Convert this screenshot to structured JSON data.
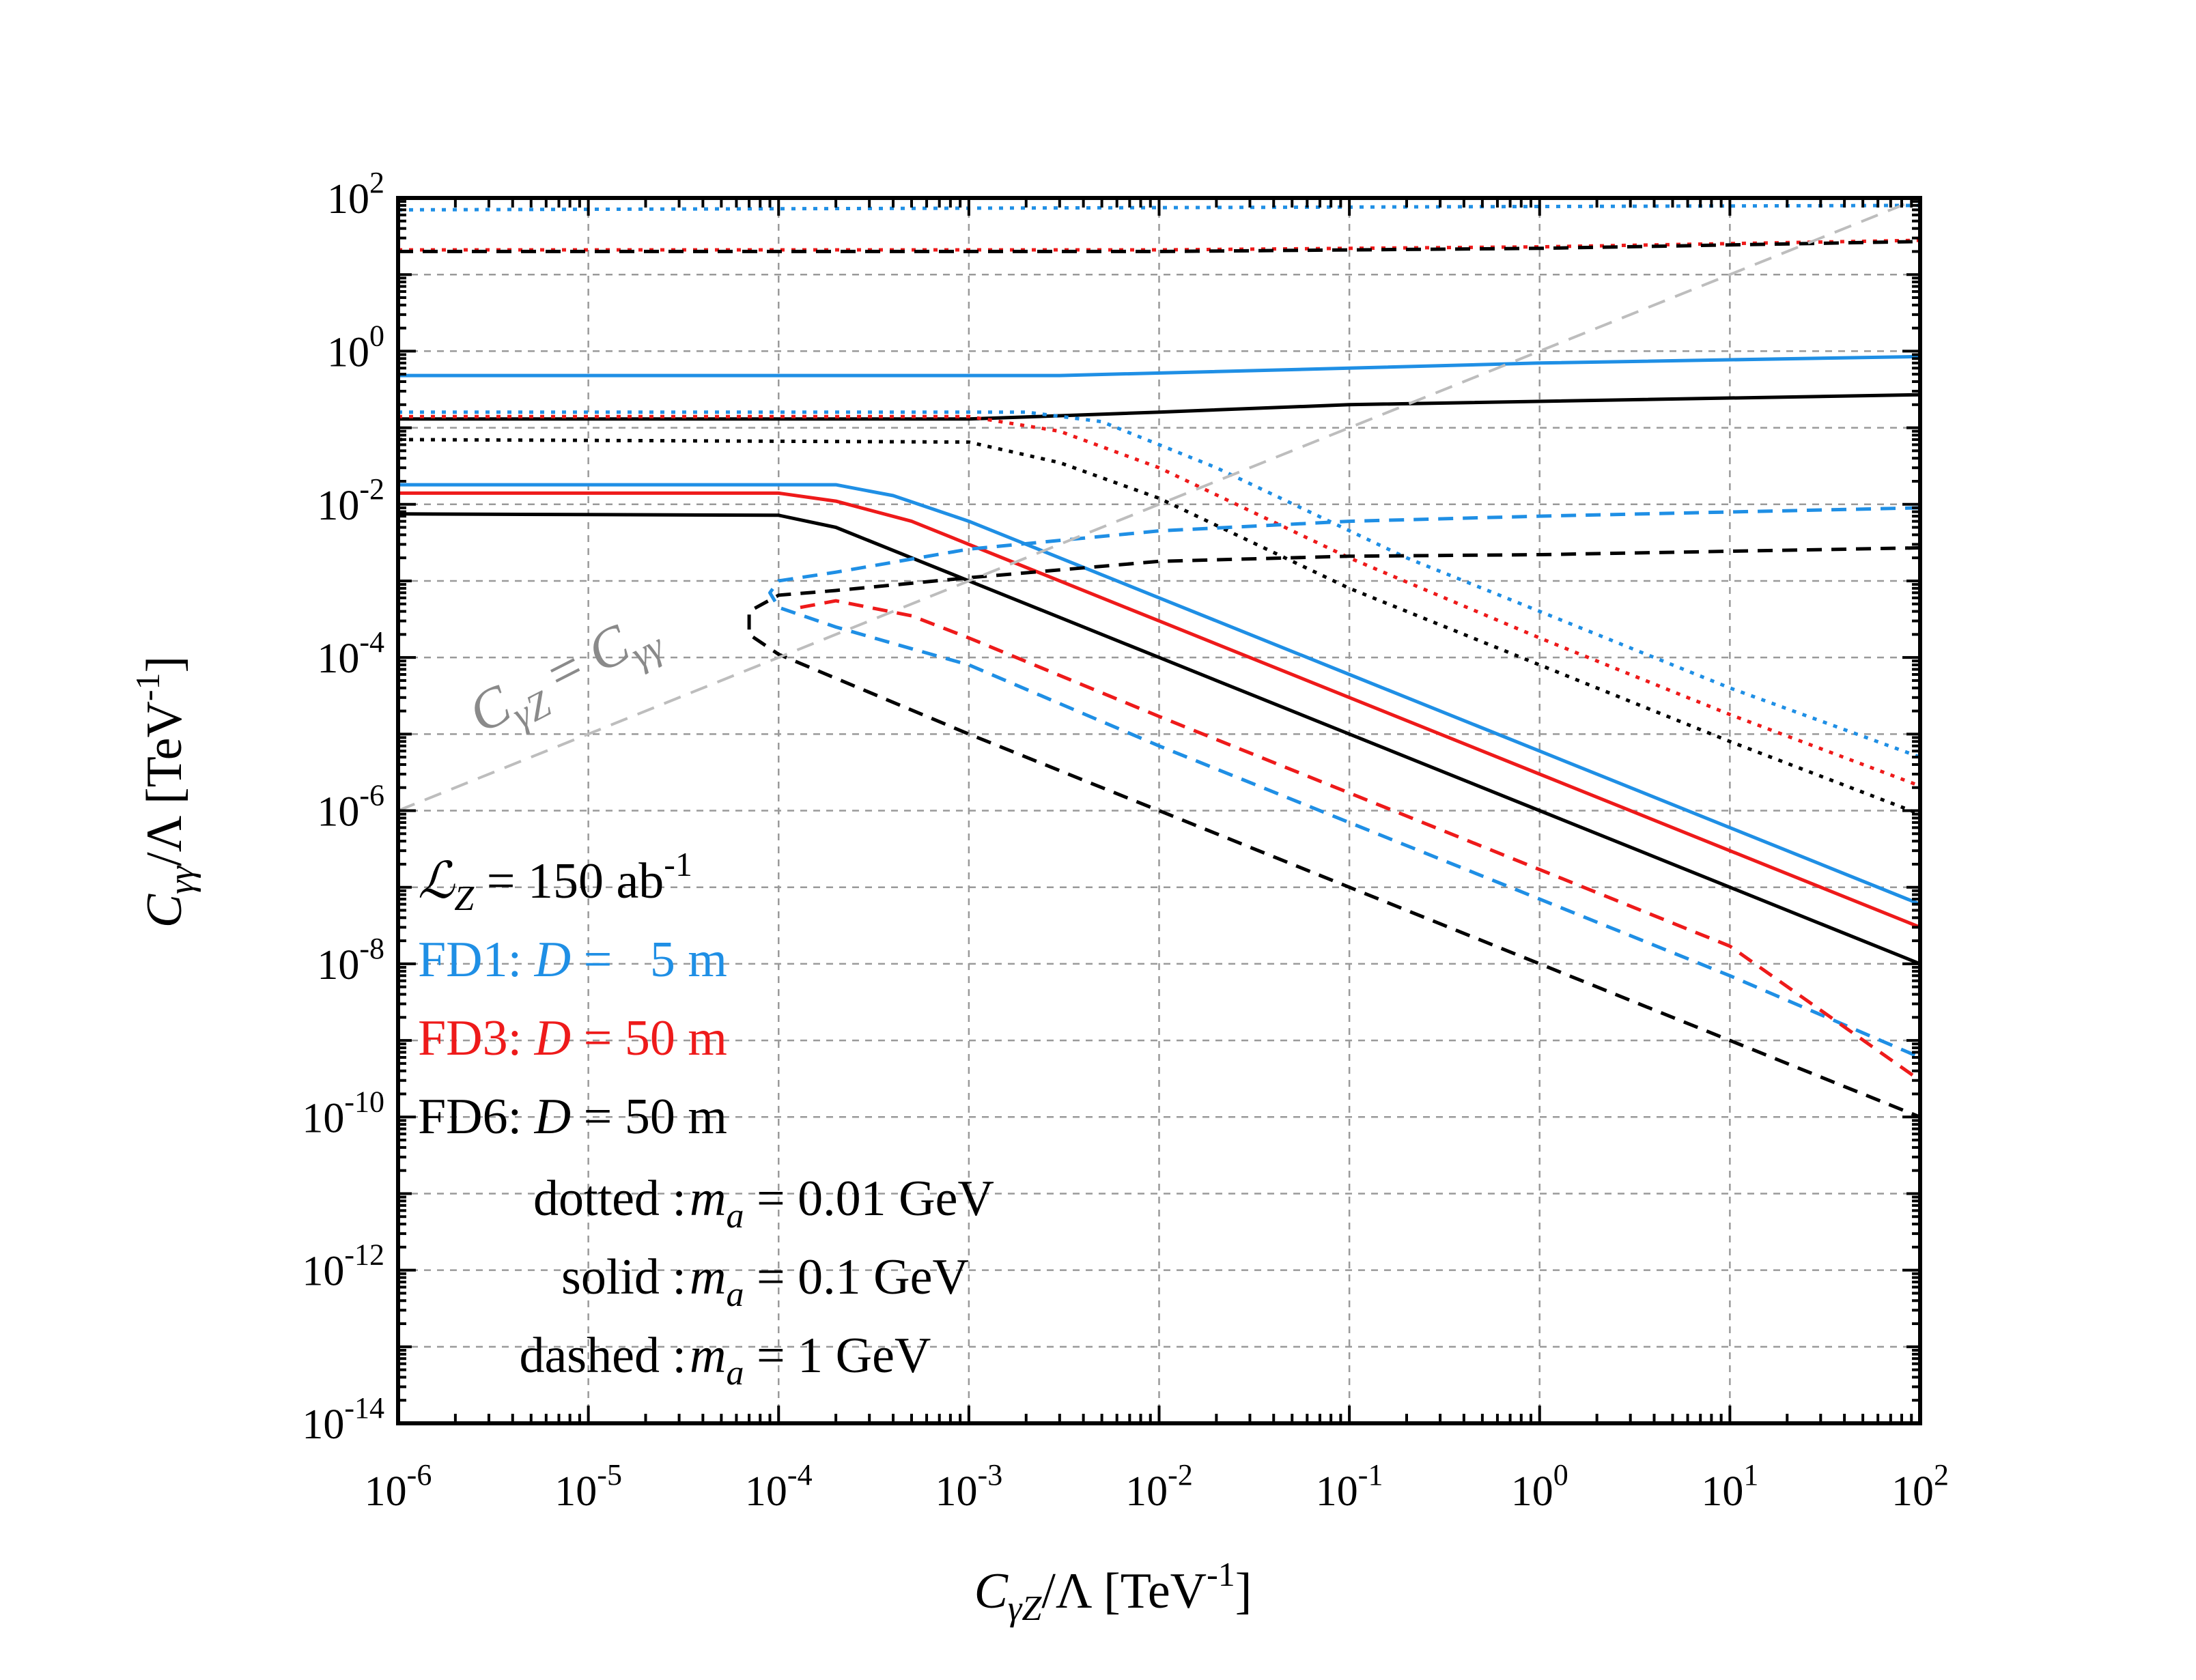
{
  "chart_data": {
    "type": "line",
    "xscale": "log",
    "yscale": "log",
    "xlim": [
      1e-06,
      100
    ],
    "ylim": [
      1e-14,
      100
    ],
    "xlabel": {
      "main": "C",
      "sub": "γZ",
      "rest": "/Λ [TeV",
      "sup": "-1",
      "end": "]"
    },
    "ylabel": {
      "main": "C",
      "sub": "γγ",
      "rest": "/Λ [TeV",
      "sup": "-1",
      "end": "]"
    },
    "grid": true,
    "x_ticks": [
      {
        "value": 1e-06,
        "base": "10",
        "exp": "-6"
      },
      {
        "value": 1e-05,
        "base": "10",
        "exp": "-5"
      },
      {
        "value": 0.0001,
        "base": "10",
        "exp": "-4"
      },
      {
        "value": 0.001,
        "base": "10",
        "exp": "-3"
      },
      {
        "value": 0.01,
        "base": "10",
        "exp": "-2"
      },
      {
        "value": 0.1,
        "base": "10",
        "exp": "-1"
      },
      {
        "value": 1,
        "base": "10",
        "exp": "0"
      },
      {
        "value": 10,
        "base": "10",
        "exp": "1"
      },
      {
        "value": 100,
        "base": "10",
        "exp": "2"
      }
    ],
    "y_ticks": [
      {
        "value": 100,
        "base": "10",
        "exp": "2"
      },
      {
        "value": 1,
        "base": "10",
        "exp": "0"
      },
      {
        "value": 0.01,
        "base": "10",
        "exp": "-2"
      },
      {
        "value": 0.0001,
        "base": "10",
        "exp": "-4"
      },
      {
        "value": 1e-06,
        "base": "10",
        "exp": "-6"
      },
      {
        "value": 1e-08,
        "base": "10",
        "exp": "-8"
      },
      {
        "value": 1e-10,
        "base": "10",
        "exp": "-10"
      },
      {
        "value": 1e-12,
        "base": "10",
        "exp": "-12"
      },
      {
        "value": 1e-14,
        "base": "10",
        "exp": "-14"
      }
    ],
    "colors": {
      "FD1": "#1f8fe5",
      "FD3": "#ee1a1a",
      "FD6": "#000000",
      "diagonal": "#bdbdbd"
    },
    "series": [
      {
        "name": "FD1 dotted",
        "detector": "FD1",
        "style": "dotted",
        "points": [
          [
            1e-06,
            70
          ],
          [
            100,
            80
          ]
        ]
      },
      {
        "name": "FD3 dotted upper",
        "detector": "FD3",
        "style": "dotted",
        "points": [
          [
            1e-06,
            21
          ],
          [
            0.01,
            21
          ],
          [
            1,
            23
          ],
          [
            100,
            28
          ]
        ]
      },
      {
        "name": "FD6 dashed upper",
        "detector": "FD6",
        "style": "dashed",
        "points": [
          [
            1e-06,
            20
          ],
          [
            0.01,
            20
          ],
          [
            1,
            22
          ],
          [
            100,
            27
          ]
        ]
      },
      {
        "name": "FD1 solid upper",
        "detector": "FD1",
        "style": "solid",
        "points": [
          [
            1e-06,
            0.48
          ],
          [
            0.003,
            0.48
          ],
          [
            0.1,
            0.6
          ],
          [
            1,
            0.7
          ],
          [
            100,
            0.85
          ]
        ]
      },
      {
        "name": "FD6 solid upper",
        "detector": "FD6",
        "style": "solid",
        "points": [
          [
            1e-06,
            0.13
          ],
          [
            0.001,
            0.13
          ],
          [
            0.01,
            0.16
          ],
          [
            0.1,
            0.2
          ],
          [
            100,
            0.27
          ]
        ]
      },
      {
        "name": "FD1 dotted lower",
        "detector": "FD1",
        "style": "dotted",
        "points": [
          [
            1e-06,
            0.16
          ],
          [
            0.002,
            0.16
          ],
          [
            0.005,
            0.12
          ],
          [
            0.02,
            0.03
          ],
          [
            0.2,
            0.002
          ],
          [
            1,
            0.0004
          ],
          [
            10,
            4e-05
          ],
          [
            100,
            5e-06
          ]
        ]
      },
      {
        "name": "FD3 dotted lower",
        "detector": "FD3",
        "style": "dotted",
        "points": [
          [
            1e-06,
            0.14
          ],
          [
            0.001,
            0.14
          ],
          [
            0.003,
            0.09
          ],
          [
            0.01,
            0.03
          ],
          [
            0.1,
            0.002
          ],
          [
            1,
            0.00018
          ],
          [
            10,
            1.8e-05
          ],
          [
            100,
            2.1e-06
          ]
        ]
      },
      {
        "name": "FD6 dotted lower",
        "detector": "FD6",
        "style": "dotted",
        "points": [
          [
            1e-06,
            0.07
          ],
          [
            0.001,
            0.065
          ],
          [
            0.003,
            0.035
          ],
          [
            0.01,
            0.012
          ],
          [
            0.1,
            0.0008
          ],
          [
            1,
            8e-05
          ],
          [
            10,
            8e-06
          ],
          [
            100,
            9e-07
          ]
        ]
      },
      {
        "name": "FD1 solid",
        "detector": "FD1",
        "style": "solid",
        "points": [
          [
            1e-06,
            0.018
          ],
          [
            0.0002,
            0.018
          ],
          [
            0.0004,
            0.013
          ],
          [
            0.001,
            0.006
          ],
          [
            0.01,
            0.0006
          ],
          [
            0.1,
            6e-05
          ],
          [
            1,
            6e-06
          ],
          [
            10,
            6e-07
          ],
          [
            100,
            6e-08
          ]
        ]
      },
      {
        "name": "FD3 solid",
        "detector": "FD3",
        "style": "solid",
        "points": [
          [
            1e-06,
            0.014
          ],
          [
            0.0001,
            0.014
          ],
          [
            0.0002,
            0.011
          ],
          [
            0.0005,
            0.006
          ],
          [
            0.001,
            0.003
          ],
          [
            0.01,
            0.0003
          ],
          [
            0.1,
            3e-05
          ],
          [
            1,
            3e-06
          ],
          [
            10,
            3e-07
          ],
          [
            100,
            3e-08
          ]
        ]
      },
      {
        "name": "FD6 solid",
        "detector": "FD6",
        "style": "solid",
        "points": [
          [
            1e-06,
            0.0075
          ],
          [
            0.0001,
            0.0072
          ],
          [
            0.0002,
            0.005
          ],
          [
            0.0005,
            0.002
          ],
          [
            0.001,
            0.001
          ],
          [
            0.01,
            0.0001
          ],
          [
            0.1,
            1e-05
          ],
          [
            1,
            1e-06
          ],
          [
            10,
            1e-07
          ],
          [
            100,
            1e-08
          ]
        ]
      },
      {
        "name": "FD1 dashed",
        "detector": "FD1",
        "style": "dashed",
        "points": [
          [
            100,
            0.009
          ],
          [
            1,
            0.007
          ],
          [
            0.1,
            0.006
          ],
          [
            0.01,
            0.0045
          ],
          [
            0.001,
            0.0026
          ],
          [
            0.0002,
            0.0013
          ],
          [
            0.0001,
            0.001
          ],
          [
            9e-05,
            0.0007
          ],
          [
            0.0001,
            0.00045
          ],
          [
            0.0002,
            0.00025
          ],
          [
            0.0005,
            0.00013
          ],
          [
            0.001,
            8e-05
          ],
          [
            0.01,
            7e-06
          ],
          [
            0.1,
            7e-07
          ],
          [
            1,
            7e-08
          ],
          [
            10,
            7e-09
          ],
          [
            100,
            6e-10
          ]
        ]
      },
      {
        "name": "FD3 dashed",
        "detector": "FD3",
        "style": "dashed",
        "points": [
          [
            0.00013,
            0.00045
          ],
          [
            0.0002,
            0.00055
          ],
          [
            0.0005,
            0.00035
          ],
          [
            0.001,
            0.00018
          ],
          [
            0.01,
            1.7e-05
          ],
          [
            0.1,
            1.7e-06
          ],
          [
            1,
            1.7e-07
          ],
          [
            10,
            1.7e-08
          ],
          [
            100,
            3e-10
          ]
        ]
      },
      {
        "name": "FD6 dashed",
        "detector": "FD6",
        "style": "dashed",
        "points": [
          [
            100,
            0.0027
          ],
          [
            1,
            0.0022
          ],
          [
            0.1,
            0.0021
          ],
          [
            0.01,
            0.0018
          ],
          [
            0.001,
            0.0011
          ],
          [
            0.0002,
            0.00075
          ],
          [
            0.0001,
            0.00065
          ],
          [
            7e-05,
            0.0004
          ],
          [
            7e-05,
            0.0002
          ],
          [
            0.0001,
            0.00011
          ],
          [
            0.001,
            1e-05
          ],
          [
            0.01,
            1e-06
          ],
          [
            0.1,
            1e-07
          ],
          [
            1,
            1e-08
          ],
          [
            10,
            1e-09
          ],
          [
            100,
            1e-10
          ]
        ]
      },
      {
        "name": "diagonal",
        "detector": "diagonal",
        "style": "dashed",
        "points": [
          [
            1e-06,
            1e-06
          ],
          [
            100,
            100
          ]
        ]
      }
    ],
    "annotation": {
      "c1": "C",
      "s1": "γZ",
      "eq": " = ",
      "c2": "C",
      "s2": "γγ"
    },
    "legend": {
      "lumi_symbol": "ℒ",
      "lumi_sub": "Z",
      "lumi_text": " = 150 ab",
      "lumi_sup": "-1",
      "fd1_name": "FD1: ",
      "fd1_var": "D",
      "fd1_val": " =   5 m",
      "fd3_name": "FD3: ",
      "fd3_var": "D",
      "fd3_val": " = 50 m",
      "fd6_name": "FD6: ",
      "fd6_var": "D",
      "fd6_val": " = 50 m",
      "dotted_label": "dotted : ",
      "dotted_val": " = 0.01 GeV",
      "solid_label": "solid : ",
      "solid_val": " = 0.1 GeV",
      "dashed_label": "dashed : ",
      "dashed_val": " = 1 GeV",
      "mass_var": "m",
      "mass_sub": "a"
    }
  }
}
